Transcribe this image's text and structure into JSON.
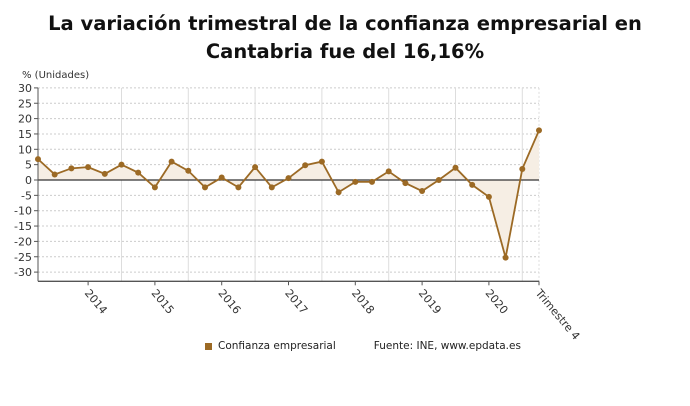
{
  "chart_data": {
    "type": "area",
    "title": "La variación trimestral de la confianza empresarial en Cantabria fue del 16,16%",
    "ylabel": "% (Unidades)",
    "xlabel": "",
    "ylim": [
      -33,
      30
    ],
    "yticks": [
      30,
      25,
      20,
      15,
      10,
      5,
      0,
      -5,
      -10,
      -15,
      -20,
      -25,
      -30
    ],
    "x_tick_labels": [
      {
        "index": 3,
        "label": "2014"
      },
      {
        "index": 7,
        "label": "2015"
      },
      {
        "index": 11,
        "label": "2016"
      },
      {
        "index": 15,
        "label": "2017"
      },
      {
        "index": 19,
        "label": "2018"
      },
      {
        "index": 23,
        "label": "2019"
      },
      {
        "index": 27,
        "label": "2020"
      },
      {
        "index": 30,
        "label": "Trimestre 4"
      }
    ],
    "grid": true,
    "legend_position": "bottom",
    "series": [
      {
        "name": "Confianza empresarial",
        "color": "#9c6a25",
        "fill": "#f6eee4",
        "values": [
          6.8,
          1.8,
          3.8,
          4.2,
          2.0,
          5.0,
          2.4,
          -2.4,
          6.0,
          3.0,
          -2.4,
          0.8,
          -2.4,
          4.2,
          -2.4,
          0.6,
          4.8,
          6.0,
          -4.0,
          -0.6,
          -0.6,
          2.8,
          -1.0,
          -3.6,
          0.0,
          4.0,
          -1.6,
          -5.5,
          -25.3,
          3.6,
          16.16
        ]
      }
    ],
    "source": "Fuente: INE, www.epdata.es"
  }
}
